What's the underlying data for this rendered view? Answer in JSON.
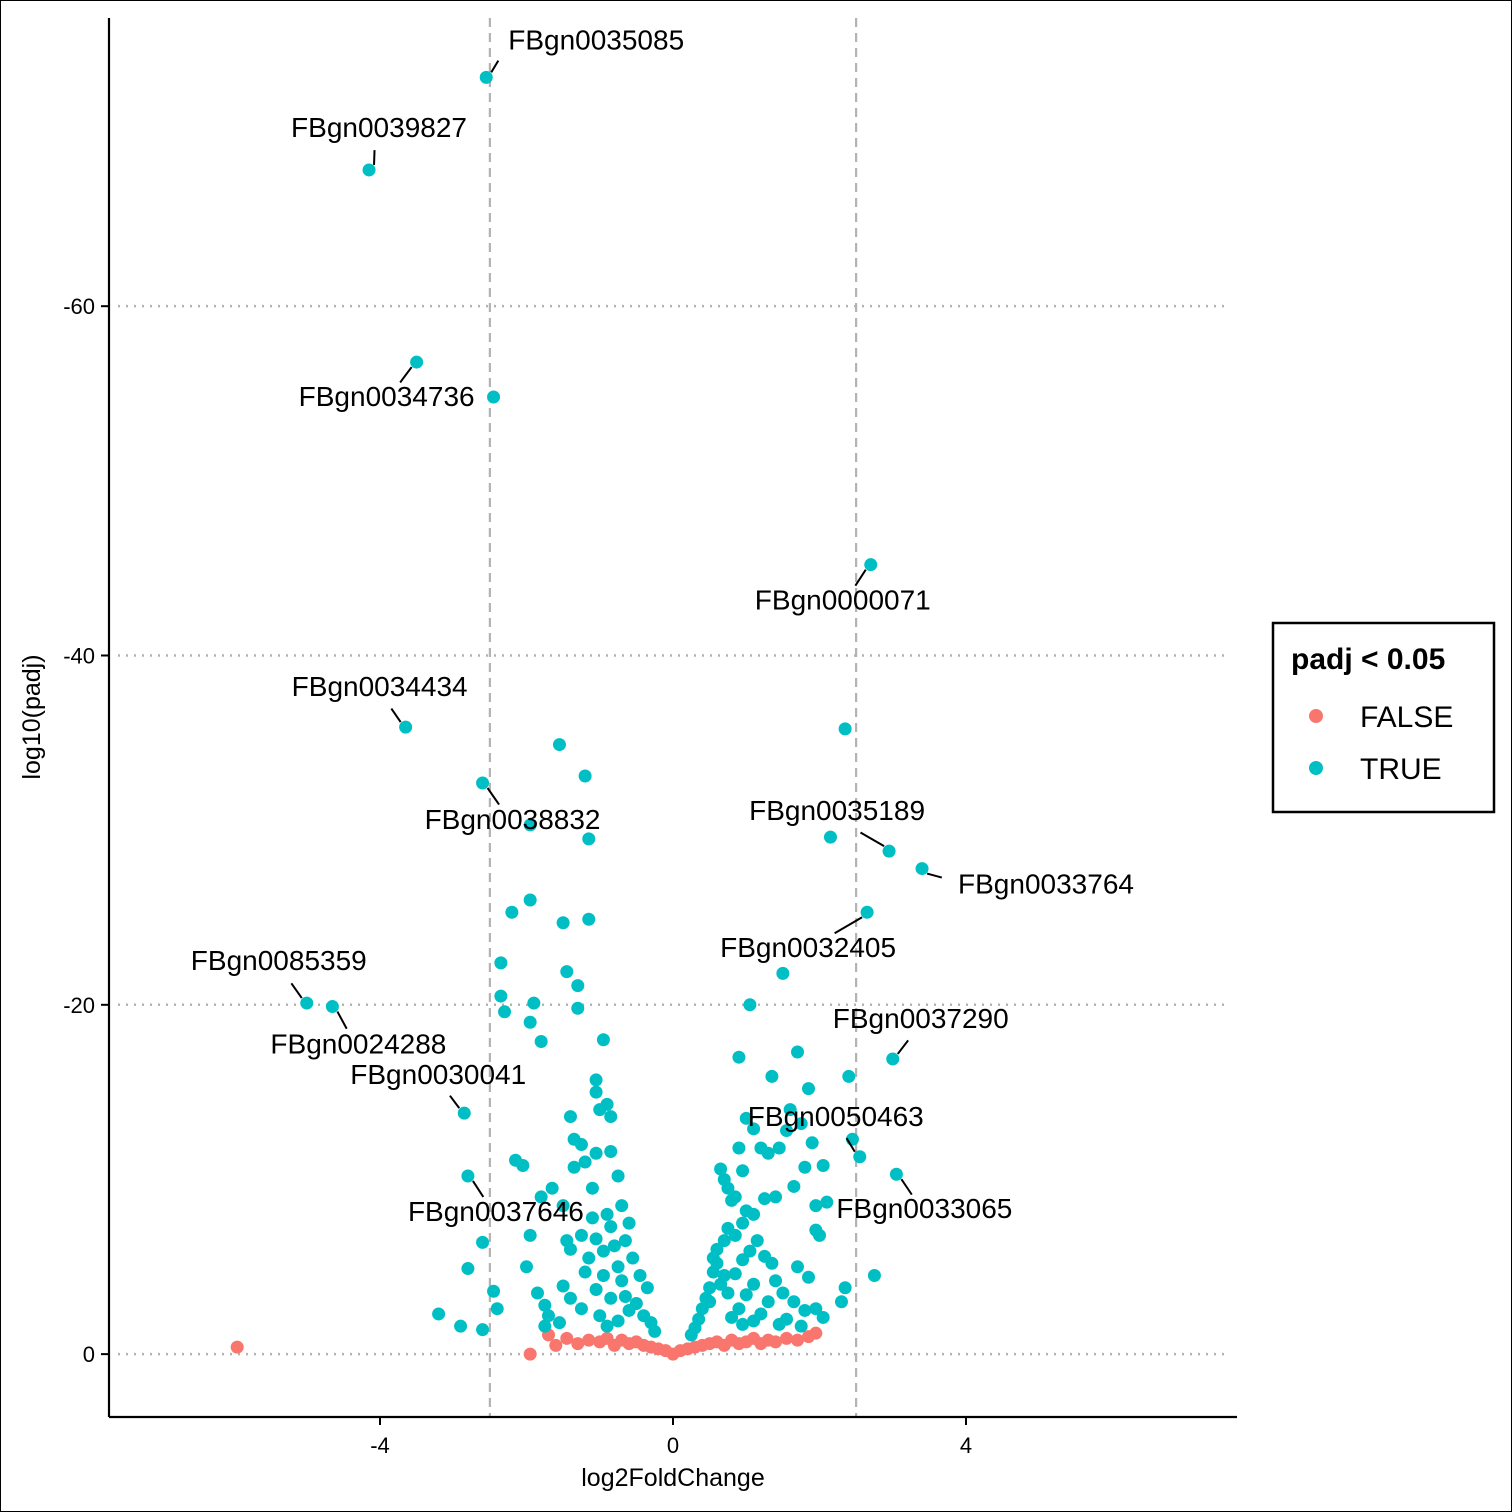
{
  "chart_data": {
    "type": "scatter",
    "title": "",
    "xlabel": "log2FoldChange",
    "ylabel": "log10(padj)",
    "xlim": [
      -7.7,
      7.7
    ],
    "ylim": [
      3.6,
      -76.5
    ],
    "x_ticks": [
      {
        "value": -4,
        "label": "-4"
      },
      {
        "value": 0,
        "label": "0"
      },
      {
        "value": 4,
        "label": "4"
      }
    ],
    "y_ticks": [
      {
        "value": -60,
        "label": "-60"
      },
      {
        "value": -40,
        "label": "-40"
      },
      {
        "value": -20,
        "label": "-20"
      },
      {
        "value": 0,
        "label": "0"
      }
    ],
    "h_gridlines": [
      -60,
      -40,
      -20,
      0
    ],
    "v_threshold_lines": [
      -2.5,
      2.5
    ],
    "grid": "dotted horizontal lines at y ticks; dashed vertical lines at |log2FoldChange| = 2.5",
    "legend": {
      "title": "padj < 0.05",
      "position": "right",
      "entries": [
        {
          "label": "FALSE",
          "color": "#F8766D"
        },
        {
          "label": "TRUE",
          "color": "#00BFC4"
        }
      ]
    },
    "series": [
      {
        "name": "FALSE",
        "color": "#F8766D",
        "points": [
          [
            -5.95,
            -0.4
          ],
          [
            -1.95,
            0.0
          ],
          [
            -1.6,
            -0.5
          ],
          [
            -1.45,
            -0.9
          ],
          [
            -1.3,
            -0.6
          ],
          [
            -1.15,
            -0.8
          ],
          [
            -1.0,
            -0.7
          ],
          [
            -0.9,
            -0.9
          ],
          [
            -0.8,
            -0.5
          ],
          [
            -0.7,
            -0.8
          ],
          [
            -0.6,
            -0.6
          ],
          [
            -0.5,
            -0.7
          ],
          [
            -0.4,
            -0.5
          ],
          [
            -0.3,
            -0.4
          ],
          [
            -0.2,
            -0.3
          ],
          [
            -0.1,
            -0.2
          ],
          [
            0.0,
            0.0
          ],
          [
            0.1,
            -0.2
          ],
          [
            0.2,
            -0.3
          ],
          [
            0.3,
            -0.4
          ],
          [
            0.4,
            -0.5
          ],
          [
            0.5,
            -0.6
          ],
          [
            0.6,
            -0.7
          ],
          [
            0.7,
            -0.5
          ],
          [
            0.8,
            -0.8
          ],
          [
            0.9,
            -0.6
          ],
          [
            1.0,
            -0.7
          ],
          [
            1.1,
            -0.9
          ],
          [
            1.2,
            -0.6
          ],
          [
            1.3,
            -0.8
          ],
          [
            1.4,
            -0.7
          ],
          [
            1.55,
            -0.9
          ],
          [
            1.7,
            -0.8
          ],
          [
            1.85,
            -1.0
          ],
          [
            1.95,
            -1.2
          ],
          [
            -1.7,
            -1.1
          ]
        ]
      },
      {
        "name": "TRUE",
        "color": "#00BFC4",
        "points": [
          [
            -2.55,
            -73.1
          ],
          [
            -4.15,
            -67.8
          ],
          [
            -3.5,
            -56.8
          ],
          [
            -2.45,
            -54.8
          ],
          [
            -3.65,
            -35.9
          ],
          [
            -2.6,
            -32.7
          ],
          [
            -1.55,
            -34.9
          ],
          [
            -1.2,
            -33.1
          ],
          [
            -1.95,
            -30.3
          ],
          [
            -1.15,
            -29.5
          ],
          [
            2.7,
            -45.2
          ],
          [
            2.35,
            -35.8
          ],
          [
            2.15,
            -29.6
          ],
          [
            2.95,
            -28.8
          ],
          [
            3.4,
            -27.8
          ],
          [
            2.65,
            -25.3
          ],
          [
            1.5,
            -21.8
          ],
          [
            1.05,
            -20.0
          ],
          [
            3.0,
            -16.9
          ],
          [
            2.4,
            -15.9
          ],
          [
            1.7,
            -17.3
          ],
          [
            0.9,
            -17.0
          ],
          [
            1.35,
            -15.9
          ],
          [
            1.85,
            -15.2
          ],
          [
            2.45,
            -12.3
          ],
          [
            2.55,
            -11.3
          ],
          [
            3.05,
            -10.3
          ],
          [
            2.75,
            -4.5
          ],
          [
            2.35,
            -3.8
          ],
          [
            2.3,
            -3.0
          ],
          [
            -5.0,
            -20.1
          ],
          [
            -4.65,
            -19.9
          ],
          [
            -2.85,
            -13.8
          ],
          [
            -2.8,
            -10.2
          ],
          [
            -2.6,
            -6.4
          ],
          [
            -2.8,
            -4.9
          ],
          [
            -3.2,
            -2.3
          ],
          [
            -2.9,
            -1.6
          ],
          [
            -2.6,
            -1.4
          ],
          [
            -2.4,
            -2.6
          ],
          [
            -2.45,
            -3.6
          ],
          [
            -1.95,
            -26.0
          ],
          [
            -2.2,
            -25.3
          ],
          [
            -1.5,
            -24.7
          ],
          [
            -1.15,
            -24.9
          ],
          [
            -2.35,
            -22.4
          ],
          [
            -1.45,
            -21.9
          ],
          [
            -1.3,
            -21.1
          ],
          [
            -2.35,
            -20.5
          ],
          [
            -2.3,
            -19.6
          ],
          [
            -1.9,
            -20.1
          ],
          [
            -1.3,
            -19.8
          ],
          [
            -1.95,
            -19.0
          ],
          [
            -1.8,
            -17.9
          ],
          [
            -0.95,
            -18.0
          ],
          [
            -1.05,
            -15.7
          ],
          [
            -1.05,
            -15.0
          ],
          [
            -0.9,
            -14.3
          ],
          [
            -1.0,
            -14.0
          ],
          [
            -0.85,
            -13.6
          ],
          [
            -1.4,
            -13.6
          ],
          [
            -1.35,
            -12.3
          ],
          [
            -1.25,
            -12.0
          ],
          [
            -1.05,
            -11.5
          ],
          [
            -0.85,
            -11.6
          ],
          [
            -2.15,
            -11.1
          ],
          [
            -2.05,
            -10.8
          ],
          [
            -1.35,
            -10.7
          ],
          [
            -1.2,
            -11.0
          ],
          [
            -0.75,
            -10.2
          ],
          [
            -1.65,
            -9.5
          ],
          [
            -1.8,
            -9.0
          ],
          [
            -1.5,
            -8.5
          ],
          [
            -1.1,
            -9.5
          ],
          [
            -0.9,
            -8.0
          ],
          [
            -0.7,
            -8.5
          ],
          [
            -0.6,
            -7.5
          ],
          [
            -1.45,
            -6.5
          ],
          [
            -1.4,
            -6.0
          ],
          [
            -1.25,
            -6.8
          ],
          [
            -1.15,
            -5.5
          ],
          [
            -1.05,
            -6.6
          ],
          [
            -0.95,
            -5.9
          ],
          [
            -0.8,
            -6.2
          ],
          [
            -0.75,
            -5.0
          ],
          [
            -1.95,
            -6.8
          ],
          [
            -2.0,
            -5.0
          ],
          [
            -1.85,
            -3.5
          ],
          [
            -1.75,
            -2.8
          ],
          [
            -1.7,
            -2.2
          ],
          [
            -1.5,
            -3.9
          ],
          [
            -1.4,
            -3.2
          ],
          [
            -1.25,
            -2.6
          ],
          [
            -1.2,
            -4.7
          ],
          [
            -1.05,
            -3.7
          ],
          [
            -0.95,
            -4.5
          ],
          [
            -0.85,
            -3.2
          ],
          [
            -0.7,
            -4.2
          ],
          [
            -0.65,
            -3.3
          ],
          [
            -0.6,
            -2.5
          ],
          [
            -0.5,
            -2.9
          ],
          [
            -0.45,
            -4.5
          ],
          [
            -0.4,
            -2.2
          ],
          [
            -0.3,
            -1.8
          ],
          [
            -0.25,
            -1.3
          ],
          [
            -0.35,
            -3.8
          ],
          [
            -0.55,
            -5.5
          ],
          [
            -0.65,
            -6.5
          ],
          [
            -0.85,
            -7.3
          ],
          [
            -1.1,
            -7.8
          ],
          [
            -1.55,
            -1.8
          ],
          [
            -1.75,
            -1.6
          ],
          [
            -0.9,
            -1.6
          ],
          [
            -0.75,
            -1.9
          ],
          [
            -1.0,
            -2.2
          ],
          [
            0.65,
            -10.6
          ],
          [
            0.7,
            -10.0
          ],
          [
            0.75,
            -9.5
          ],
          [
            0.8,
            -8.8
          ],
          [
            0.85,
            -9.0
          ],
          [
            0.9,
            -11.8
          ],
          [
            0.95,
            -10.5
          ],
          [
            1.0,
            -13.5
          ],
          [
            1.1,
            -12.9
          ],
          [
            1.2,
            -11.8
          ],
          [
            1.3,
            -11.5
          ],
          [
            1.45,
            -11.8
          ],
          [
            1.55,
            -12.8
          ],
          [
            1.6,
            -14.0
          ],
          [
            1.75,
            -13.2
          ],
          [
            1.9,
            -12.1
          ],
          [
            2.05,
            -10.8
          ],
          [
            1.8,
            -10.7
          ],
          [
            1.65,
            -9.6
          ],
          [
            1.4,
            -9.0
          ],
          [
            1.25,
            -8.9
          ],
          [
            1.1,
            -8.0
          ],
          [
            1.0,
            -8.2
          ],
          [
            0.95,
            -7.5
          ],
          [
            0.85,
            -6.8
          ],
          [
            0.75,
            -7.2
          ],
          [
            0.7,
            -6.5
          ],
          [
            0.6,
            -5.2
          ],
          [
            0.55,
            -4.7
          ],
          [
            0.5,
            -3.8
          ],
          [
            0.45,
            -3.2
          ],
          [
            0.4,
            -2.6
          ],
          [
            0.35,
            -2.0
          ],
          [
            0.3,
            -1.5
          ],
          [
            0.25,
            -1.1
          ],
          [
            0.65,
            -4.0
          ],
          [
            0.75,
            -3.5
          ],
          [
            0.85,
            -4.6
          ],
          [
            0.95,
            -5.4
          ],
          [
            1.05,
            -5.9
          ],
          [
            1.15,
            -6.5
          ],
          [
            1.25,
            -5.6
          ],
          [
            1.35,
            -5.2
          ],
          [
            1.4,
            -4.2
          ],
          [
            1.5,
            -3.5
          ],
          [
            1.3,
            -3.0
          ],
          [
            1.2,
            -2.3
          ],
          [
            1.1,
            -1.9
          ],
          [
            0.9,
            -2.6
          ],
          [
            0.8,
            -2.1
          ],
          [
            1.65,
            -3.0
          ],
          [
            1.8,
            -2.5
          ],
          [
            1.95,
            -2.6
          ],
          [
            2.05,
            -2.1
          ],
          [
            1.55,
            -2.0
          ],
          [
            1.95,
            -8.5
          ],
          [
            2.1,
            -8.7
          ],
          [
            1.95,
            -7.1
          ],
          [
            2.0,
            -6.8
          ],
          [
            1.7,
            -5.0
          ],
          [
            1.85,
            -4.4
          ],
          [
            0.6,
            -6.0
          ],
          [
            0.55,
            -5.5
          ],
          [
            0.7,
            -4.5
          ],
          [
            0.5,
            -3.0
          ],
          [
            1.0,
            -3.4
          ],
          [
            1.1,
            -4.0
          ],
          [
            0.95,
            -1.7
          ],
          [
            1.45,
            -1.7
          ],
          [
            1.75,
            -1.6
          ]
        ]
      }
    ],
    "labels": [
      {
        "text": "FBgn0035085",
        "point": [
          -2.55,
          -73.1
        ]
      },
      {
        "text": "FBgn0039827",
        "point": [
          -4.15,
          -67.8
        ]
      },
      {
        "text": "FBgn0034736",
        "point": [
          -3.5,
          -56.8
        ]
      },
      {
        "text": "FBgn0000071",
        "point": [
          2.7,
          -45.2
        ]
      },
      {
        "text": "FBgn0034434",
        "point": [
          -3.65,
          -35.9
        ]
      },
      {
        "text": "FBgn0038832",
        "point": [
          -2.6,
          -32.7
        ]
      },
      {
        "text": "FBgn0035189",
        "point": [
          2.95,
          -28.8
        ]
      },
      {
        "text": "FBgn0033764",
        "point": [
          3.4,
          -27.8
        ]
      },
      {
        "text": "FBgn0032405",
        "point": [
          2.65,
          -25.3
        ]
      },
      {
        "text": "FBgn0085359",
        "point": [
          -5.0,
          -20.1
        ]
      },
      {
        "text": "FBgn0024288",
        "point": [
          -4.65,
          -19.9
        ]
      },
      {
        "text": "FBgn0037290",
        "point": [
          3.0,
          -16.9
        ]
      },
      {
        "text": "FBgn0030041",
        "point": [
          -2.85,
          -13.8
        ]
      },
      {
        "text": "FBgn0050463",
        "point": [
          2.55,
          -11.3
        ]
      },
      {
        "text": "FBgn0033065",
        "point": [
          3.05,
          -10.3
        ]
      },
      {
        "text": "FBgn0037646",
        "point": [
          -2.8,
          -10.2
        ]
      }
    ]
  }
}
